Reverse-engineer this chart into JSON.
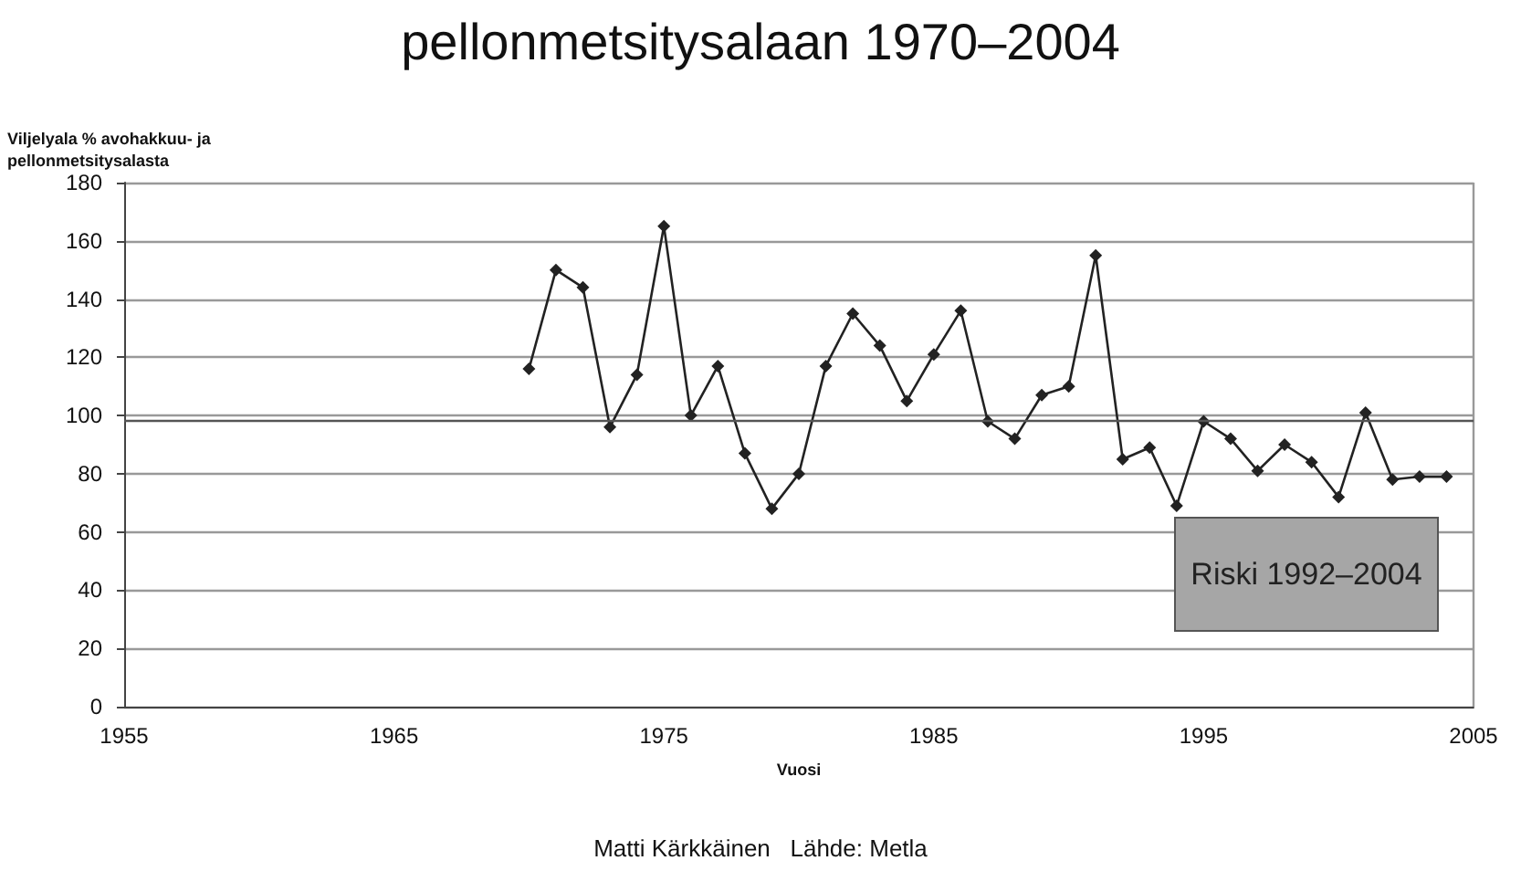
{
  "chart_data": {
    "type": "line",
    "title": "pellonmetsitysalaan 1970–2004",
    "xlabel": "Vuosi",
    "ylabel": "Viljelyala % avohakkuu- ja pellonmetsitysalasta",
    "x": [
      1970,
      1971,
      1972,
      1973,
      1974,
      1975,
      1976,
      1977,
      1978,
      1979,
      1980,
      1981,
      1982,
      1983,
      1984,
      1985,
      1986,
      1987,
      1988,
      1989,
      1990,
      1991,
      1992,
      1993,
      1994,
      1995,
      1996,
      1997,
      1998,
      1999,
      2000,
      2001,
      2002,
      2003,
      2004
    ],
    "series": [
      {
        "color": "#222222",
        "values": [
          116,
          150,
          144,
          96,
          114,
          165,
          100,
          117,
          87,
          68,
          80,
          117,
          135,
          124,
          105,
          121,
          136,
          98,
          92,
          107,
          110,
          155,
          85,
          89,
          69,
          98,
          92,
          81,
          90,
          84,
          72,
          101,
          78,
          79,
          79
        ]
      }
    ],
    "xlim": [
      1955,
      2005
    ],
    "xticks": [
      1955,
      1965,
      1975,
      1985,
      1995,
      2005
    ],
    "ylim": [
      0,
      180
    ],
    "yticks": [
      0,
      20,
      40,
      60,
      80,
      100,
      120,
      140,
      160,
      180
    ],
    "grid": "y",
    "marker": "diamond",
    "line_style": "solid",
    "ref_lines": [
      {
        "axis": "y",
        "value": 98,
        "color": "#555555"
      }
    ],
    "annotations": [
      "Riski 1992–2004",
      "Matti Kärkkäinen   Lähde: Metla"
    ]
  }
}
